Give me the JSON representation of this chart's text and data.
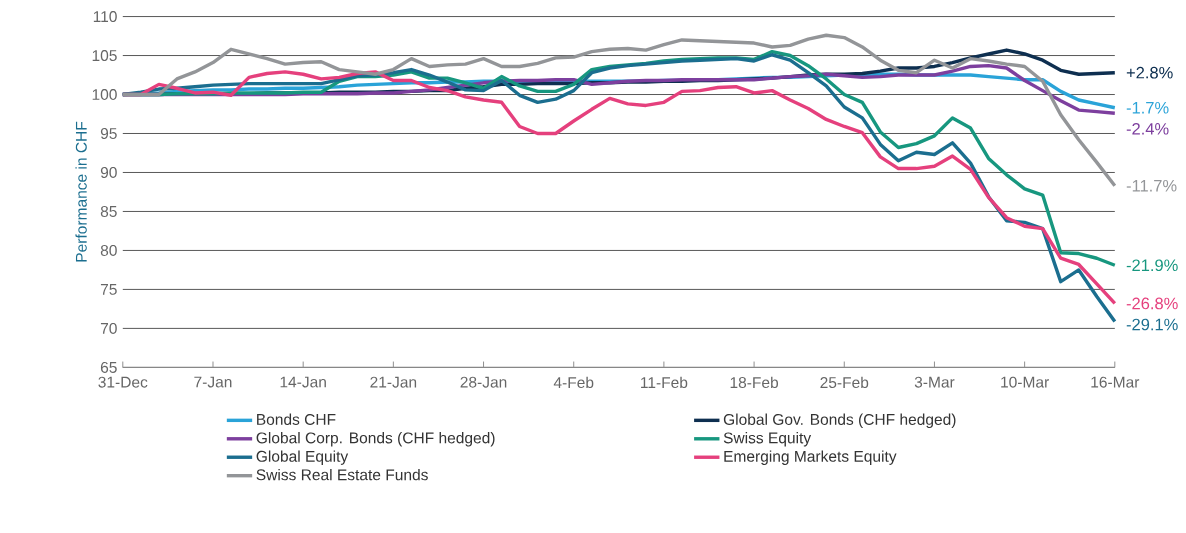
{
  "chart_data": {
    "type": "line",
    "ylabel": "Performance in CHF",
    "categories": [
      "31-Dec",
      null,
      null,
      null,
      null,
      "7-Jan",
      null,
      null,
      null,
      null,
      "14-Jan",
      null,
      null,
      null,
      null,
      "21-Jan",
      null,
      null,
      null,
      null,
      "28-Jan",
      null,
      null,
      null,
      null,
      "4-Feb",
      null,
      null,
      null,
      null,
      "11-Feb",
      null,
      null,
      null,
      null,
      "18-Feb",
      null,
      null,
      null,
      null,
      "25-Feb",
      null,
      null,
      null,
      null,
      "3-Mar",
      null,
      null,
      null,
      null,
      "10-Mar",
      null,
      null,
      null,
      null,
      "16-Mar"
    ],
    "ylim": [
      65,
      110
    ],
    "yticks": [
      65,
      70,
      75,
      80,
      85,
      90,
      95,
      100,
      105,
      110
    ],
    "grid": "y",
    "legend": "bottom",
    "series": [
      {
        "name": "Bonds CHF",
        "color": "#2aa3d8",
        "values": [
          100,
          100.1,
          100.2,
          100.4,
          100.5,
          100.6,
          100.6,
          100.7,
          100.7,
          100.8,
          100.8,
          100.9,
          101,
          101.2,
          101.3,
          101.4,
          101.5,
          101.5,
          101.6,
          101.6,
          101.7,
          101.7,
          101.7,
          101.7,
          101.7,
          101.7,
          101.7,
          101.7,
          101.7,
          101.7,
          101.8,
          101.8,
          101.9,
          101.9,
          102,
          102.1,
          102.2,
          102.2,
          102.3,
          102.4,
          102.5,
          102.5,
          102.6,
          102.6,
          102.5,
          102.5,
          102.5,
          102.5,
          102.3,
          102.1,
          101.9,
          101.9,
          100.4,
          99.3,
          98.8,
          98.3
        ]
      },
      {
        "name": "Global Gov. Bonds (CHF hedged)",
        "color": "#0e2f50",
        "values": [
          100,
          100,
          100,
          100.1,
          100.1,
          100.1,
          100.1,
          100.1,
          100.2,
          100.2,
          100.2,
          100.2,
          100.3,
          100.3,
          100.3,
          100.4,
          100.4,
          100.5,
          100.5,
          100.8,
          101,
          101.3,
          101.3,
          101.4,
          101.4,
          101.4,
          101.5,
          101.5,
          101.6,
          101.6,
          101.7,
          101.7,
          101.8,
          101.8,
          101.9,
          102,
          102.1,
          102.3,
          102.5,
          102.6,
          102.6,
          102.7,
          103,
          103.4,
          103.4,
          103.6,
          104.1,
          104.7,
          105.2,
          105.7,
          105.2,
          104.4,
          103.1,
          102.6,
          102.7,
          102.8
        ]
      },
      {
        "name": "Global Corp. Bonds (CHF hedged)",
        "color": "#7d3f9e",
        "values": [
          100,
          100,
          100,
          100,
          100,
          100,
          100,
          100,
          100,
          100,
          100.1,
          100.1,
          100.1,
          100.1,
          100.2,
          100.2,
          100.4,
          100.6,
          100.9,
          101.2,
          101.5,
          101.7,
          101.8,
          101.8,
          101.9,
          101.9,
          101.3,
          101.5,
          101.7,
          101.8,
          101.8,
          101.9,
          101.9,
          101.9,
          101.9,
          101.9,
          102.1,
          102.3,
          102.4,
          102.6,
          102.4,
          102.2,
          102.3,
          102.5,
          102.5,
          102.5,
          103,
          103.6,
          103.7,
          103.4,
          101.8,
          100.5,
          99.2,
          98,
          97.8,
          97.6
        ]
      },
      {
        "name": "Swiss Equity",
        "color": "#17977f",
        "values": [
          100,
          100,
          100,
          100.1,
          100.1,
          100.1,
          100.2,
          100.2,
          100.2,
          100.2,
          100.3,
          100.3,
          101.7,
          102.3,
          102.3,
          102.5,
          102.9,
          102.1,
          102.1,
          101.5,
          100.8,
          102.3,
          101.1,
          100.4,
          100.4,
          101.3,
          103.2,
          103.6,
          103.8,
          104,
          104.3,
          104.5,
          104.6,
          104.7,
          104.7,
          104.5,
          105.5,
          105,
          103.7,
          102,
          100,
          99,
          95.2,
          93.2,
          93.7,
          94.7,
          97,
          95.7,
          91.8,
          89.7,
          87.9,
          87.1,
          79.7,
          79.6,
          79,
          78.1
        ]
      },
      {
        "name": "Global Equity",
        "color": "#1b6e8f",
        "values": [
          100,
          100.3,
          100.7,
          100.8,
          101,
          101.2,
          101.3,
          101.4,
          101.4,
          101.4,
          101.4,
          101.4,
          101.9,
          102.4,
          102.5,
          102.8,
          103.2,
          102.5,
          101.6,
          100.6,
          100.5,
          101.8,
          99.9,
          99,
          99.4,
          100.5,
          102.8,
          103.4,
          103.7,
          103.9,
          104.1,
          104.3,
          104.4,
          104.5,
          104.6,
          104.3,
          105.1,
          104.4,
          102.8,
          101.1,
          98.4,
          97,
          93.6,
          91.5,
          92.6,
          92.3,
          93.8,
          91.2,
          86.9,
          83.8,
          83.6,
          82.8,
          76,
          77.5,
          74.1,
          70.9
        ]
      },
      {
        "name": "Emerging Markets Equity",
        "color": "#e5407d",
        "values": [
          100,
          100,
          101.3,
          100.8,
          100.2,
          100.3,
          99.9,
          102.2,
          102.7,
          102.9,
          102.6,
          102,
          102.2,
          102.7,
          102.9,
          101.8,
          101.8,
          100.9,
          100.5,
          99.7,
          99.3,
          99,
          95.9,
          95,
          95,
          96.6,
          98.1,
          99.5,
          98.8,
          98.6,
          99,
          100.4,
          100.5,
          100.9,
          101,
          100.2,
          100.5,
          99.3,
          98.2,
          96.8,
          95.9,
          95.1,
          92,
          90.5,
          90.5,
          90.8,
          92.1,
          90.4,
          86.8,
          84.2,
          83.1,
          82.8,
          79,
          78.2,
          75.7,
          73.2
        ]
      },
      {
        "name": "Swiss Real Estate Funds",
        "color": "#939598",
        "values": [
          100,
          100,
          100,
          102,
          102.9,
          104.1,
          105.8,
          105.2,
          104.6,
          103.9,
          104.1,
          104.2,
          103.2,
          102.9,
          102.6,
          103.2,
          104.6,
          103.6,
          103.8,
          103.9,
          104.6,
          103.6,
          103.6,
          104,
          104.7,
          104.8,
          105.5,
          105.8,
          105.9,
          105.7,
          106.4,
          107,
          106.9,
          106.8,
          106.7,
          106.6,
          106.1,
          106.3,
          107.1,
          107.6,
          107.3,
          106.1,
          104.4,
          103.1,
          102.8,
          104.4,
          103.4,
          104.6,
          104.3,
          103.9,
          103.6,
          101.7,
          97.4,
          94.2,
          91.3,
          88.3
        ]
      }
    ],
    "annotations": [
      "+2.8%",
      "-1.7%",
      "-2.4%",
      "-11.7%",
      "-21.9%",
      "-26.8%",
      "-29.1%"
    ]
  }
}
